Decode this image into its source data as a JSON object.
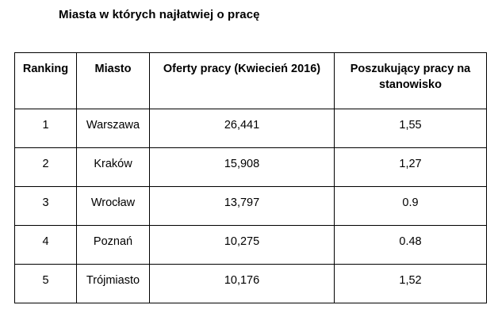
{
  "document": {
    "title": "Miasta w których najłatwiej o pracę"
  },
  "table": {
    "headers": [
      "Ranking",
      "Miasto",
      "Oferty pracy (Kwiecień 2016)",
      "Poszukujący pracy na stanowisko"
    ],
    "rows": [
      [
        "1",
        "Warszawa",
        "26,441",
        "1,55"
      ],
      [
        "2",
        "Kraków",
        "15,908",
        "1,27"
      ],
      [
        "3",
        "Wrocław",
        "13,797",
        "0.9"
      ],
      [
        "4",
        "Poznań",
        "10,275",
        "0.48"
      ],
      [
        "5",
        "Trójmiasto",
        "10,176",
        "1,52"
      ]
    ]
  }
}
